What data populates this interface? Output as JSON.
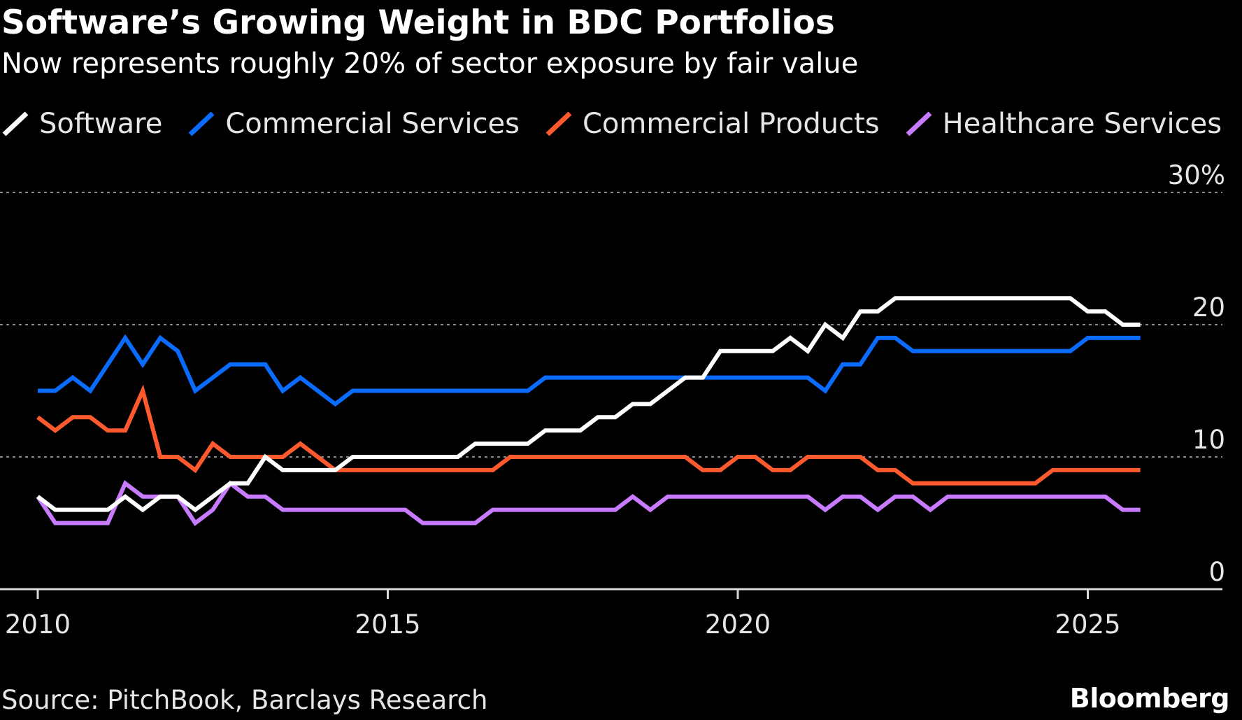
{
  "title": "Software’s Growing Weight in BDC Portfolios",
  "subtitle": "Now represents roughly 20% of sector exposure by fair value",
  "source": "Source: PitchBook, Barclays Research",
  "brand": "Bloomberg",
  "chart_data": {
    "type": "line",
    "ylim": [
      0,
      30
    ],
    "xlim": [
      2010,
      2027.2
    ],
    "grid": true,
    "legend_position": "top",
    "y_ticks": [
      0,
      10,
      20,
      30
    ],
    "y_tick_labels": [
      "0",
      "10",
      "20",
      "30%"
    ],
    "x_ticks": [
      2010,
      2015,
      2020,
      2025
    ],
    "x_tick_labels": [
      "2010",
      "2015",
      "2020",
      "2025"
    ],
    "colors": {
      "Software": "#ffffff",
      "Commercial Services": "#0a6cff",
      "Commercial Products": "#ff5a2e",
      "Healthcare Services": "#c87bff"
    },
    "x": [
      2010.0,
      2010.25,
      2010.5,
      2010.75,
      2011.0,
      2011.25,
      2011.5,
      2011.75,
      2012.0,
      2012.25,
      2012.5,
      2012.75,
      2013.0,
      2013.25,
      2013.5,
      2013.75,
      2014.0,
      2014.25,
      2014.5,
      2014.75,
      2015.0,
      2015.25,
      2015.5,
      2015.75,
      2016.0,
      2016.25,
      2016.5,
      2016.75,
      2017.0,
      2017.25,
      2017.5,
      2017.75,
      2018.0,
      2018.25,
      2018.5,
      2018.75,
      2019.0,
      2019.25,
      2019.5,
      2019.75,
      2020.0,
      2020.25,
      2020.5,
      2020.75,
      2021.0,
      2021.25,
      2021.5,
      2021.75,
      2022.0,
      2022.25,
      2022.5,
      2022.75,
      2023.0,
      2023.25,
      2023.5,
      2023.75,
      2024.0,
      2024.25,
      2024.5,
      2024.75,
      2025.0,
      2025.25,
      2025.5,
      2025.75
    ],
    "series": [
      {
        "name": "Software",
        "values": [
          7.0,
          6.0,
          6.0,
          6.0,
          6.0,
          7.0,
          6.0,
          7.0,
          7.0,
          6.0,
          7.0,
          8.0,
          8.0,
          10.0,
          9.0,
          9.0,
          9.0,
          9.0,
          10.0,
          10.0,
          10.0,
          10.0,
          10.0,
          10.0,
          10.0,
          11.0,
          11.0,
          11.0,
          11.0,
          12.0,
          12.0,
          12.0,
          13.0,
          13.0,
          14.0,
          14.0,
          15.0,
          16.0,
          16.0,
          18.0,
          18.0,
          18.0,
          18.0,
          19.0,
          18.0,
          20.0,
          19.0,
          21.0,
          21.0,
          22.0,
          22.0,
          22.0,
          22.0,
          22.0,
          22.0,
          22.0,
          22.0,
          22.0,
          22.0,
          22.0,
          21.0,
          21.0,
          20.0,
          20.0
        ]
      },
      {
        "name": "Commercial Services",
        "values": [
          15.0,
          15.0,
          16.0,
          15.0,
          17.0,
          19.0,
          17.0,
          19.0,
          18.0,
          15.0,
          16.0,
          17.0,
          17.0,
          17.0,
          15.0,
          16.0,
          15.0,
          14.0,
          15.0,
          15.0,
          15.0,
          15.0,
          15.0,
          15.0,
          15.0,
          15.0,
          15.0,
          15.0,
          15.0,
          16.0,
          16.0,
          16.0,
          16.0,
          16.0,
          16.0,
          16.0,
          16.0,
          16.0,
          16.0,
          16.0,
          16.0,
          16.0,
          16.0,
          16.0,
          16.0,
          15.0,
          17.0,
          17.0,
          19.0,
          19.0,
          18.0,
          18.0,
          18.0,
          18.0,
          18.0,
          18.0,
          18.0,
          18.0,
          18.0,
          18.0,
          19.0,
          19.0,
          19.0,
          19.0
        ]
      },
      {
        "name": "Commercial Products",
        "values": [
          13.0,
          12.0,
          13.0,
          13.0,
          12.0,
          12.0,
          15.0,
          10.0,
          10.0,
          9.0,
          11.0,
          10.0,
          10.0,
          10.0,
          10.0,
          11.0,
          10.0,
          9.0,
          9.0,
          9.0,
          9.0,
          9.0,
          9.0,
          9.0,
          9.0,
          9.0,
          9.0,
          10.0,
          10.0,
          10.0,
          10.0,
          10.0,
          10.0,
          10.0,
          10.0,
          10.0,
          10.0,
          10.0,
          9.0,
          9.0,
          10.0,
          10.0,
          9.0,
          9.0,
          10.0,
          10.0,
          10.0,
          10.0,
          9.0,
          9.0,
          8.0,
          8.0,
          8.0,
          8.0,
          8.0,
          8.0,
          8.0,
          8.0,
          9.0,
          9.0,
          9.0,
          9.0,
          9.0,
          9.0
        ]
      },
      {
        "name": "Healthcare Services",
        "values": [
          7.0,
          5.0,
          5.0,
          5.0,
          5.0,
          8.0,
          7.0,
          7.0,
          7.0,
          5.0,
          6.0,
          8.0,
          7.0,
          7.0,
          6.0,
          6.0,
          6.0,
          6.0,
          6.0,
          6.0,
          6.0,
          6.0,
          5.0,
          5.0,
          5.0,
          5.0,
          6.0,
          6.0,
          6.0,
          6.0,
          6.0,
          6.0,
          6.0,
          6.0,
          7.0,
          6.0,
          7.0,
          7.0,
          7.0,
          7.0,
          7.0,
          7.0,
          7.0,
          7.0,
          7.0,
          6.0,
          7.0,
          7.0,
          6.0,
          7.0,
          7.0,
          6.0,
          7.0,
          7.0,
          7.0,
          7.0,
          7.0,
          7.0,
          7.0,
          7.0,
          7.0,
          7.0,
          6.0,
          6.0
        ]
      }
    ]
  }
}
